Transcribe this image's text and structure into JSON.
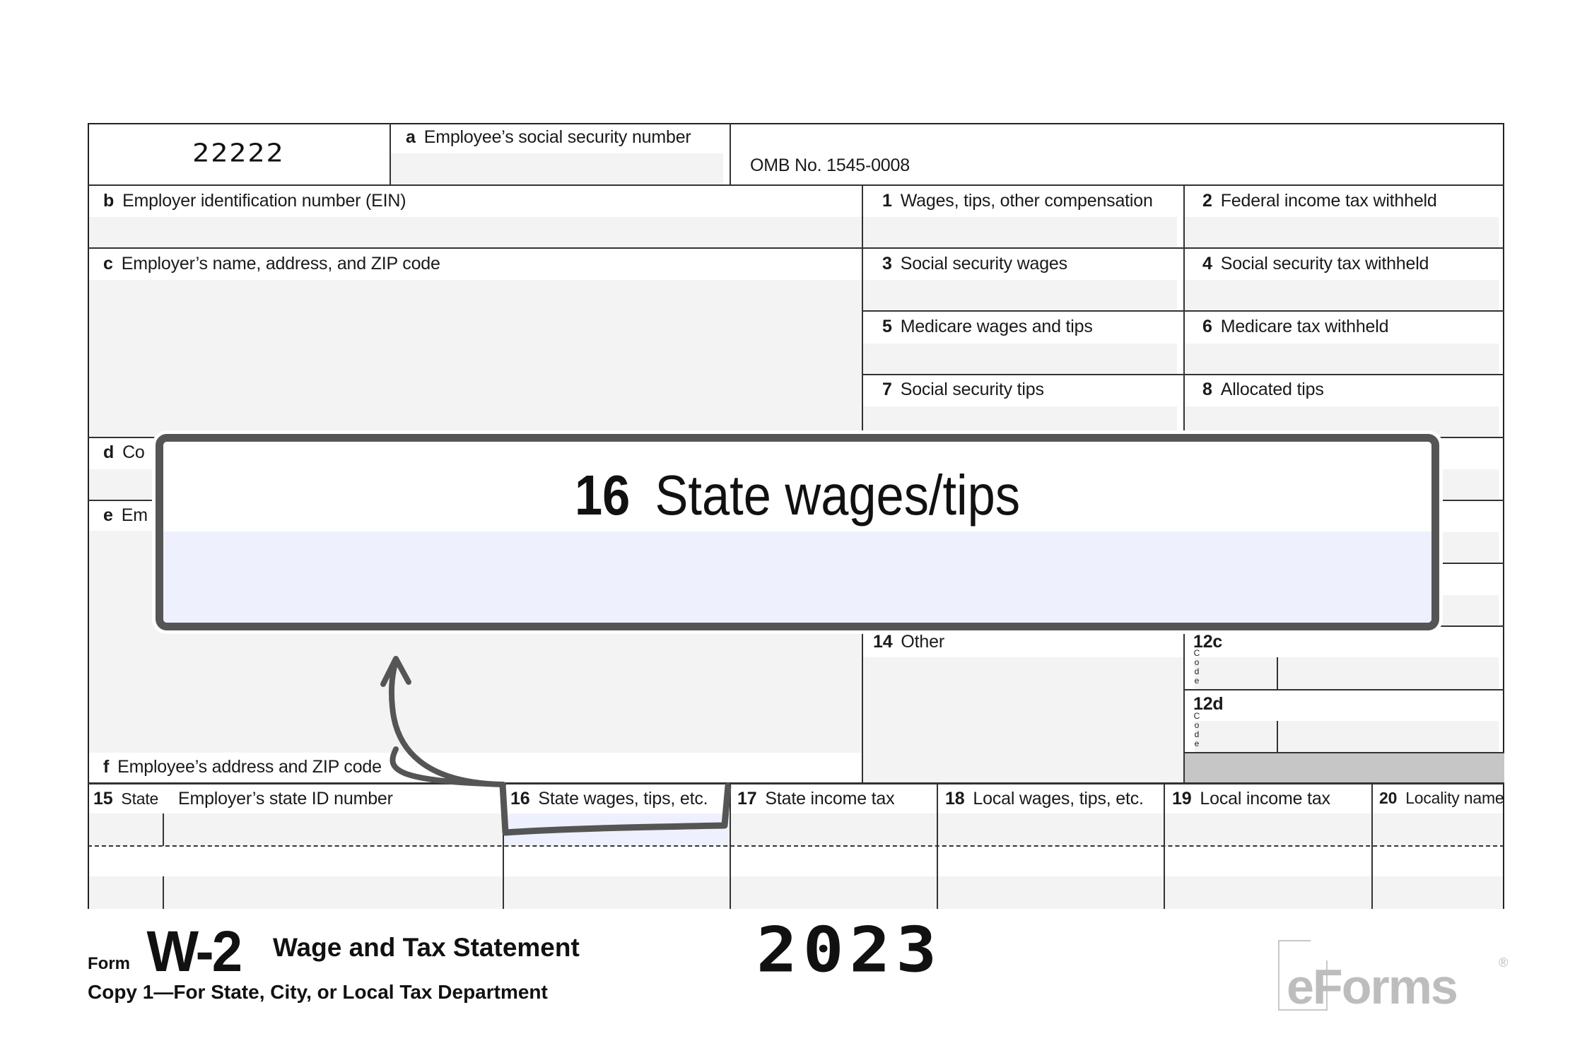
{
  "form": {
    "control_number": "22222",
    "omb": "OMB No. 1545-0008",
    "boxes": {
      "a": {
        "letter": "a",
        "label": "Employee’s social security number"
      },
      "b": {
        "letter": "b",
        "label": "Employer identification number (EIN)"
      },
      "c": {
        "letter": "c",
        "label": "Employer’s name, address, and ZIP code"
      },
      "d": {
        "letter": "d",
        "label": "Co"
      },
      "e": {
        "letter": "e",
        "label": "Em"
      },
      "f": {
        "letter": "f",
        "label": "Employee’s address and ZIP code"
      },
      "b1": {
        "num": "1",
        "label": "Wages, tips, other compensation"
      },
      "b2": {
        "num": "2",
        "label": "Federal income tax withheld"
      },
      "b3": {
        "num": "3",
        "label": "Social security wages"
      },
      "b4": {
        "num": "4",
        "label": "Social security tax withheld"
      },
      "b5": {
        "num": "5",
        "label": "Medicare wages and tips"
      },
      "b6": {
        "num": "6",
        "label": "Medicare tax withheld"
      },
      "b7": {
        "num": "7",
        "label": "Social security tips"
      },
      "b8": {
        "num": "8",
        "label": "Allocated tips"
      },
      "b14": {
        "num": "14",
        "label": "Other"
      },
      "b12c": {
        "num": "12c",
        "code": "Code"
      },
      "b12d": {
        "num": "12d",
        "code": "Code"
      },
      "b15": {
        "num": "15",
        "label": "State",
        "label2": "Employer’s state ID number"
      },
      "b16": {
        "num": "16",
        "label": "State wages, tips, etc."
      },
      "b17": {
        "num": "17",
        "label": "State income tax"
      },
      "b18": {
        "num": "18",
        "label": "Local wages, tips, etc."
      },
      "b19": {
        "num": "19",
        "label": "Local income tax"
      },
      "b20": {
        "num": "20",
        "label": "Locality name"
      }
    },
    "footer": {
      "form_word": "Form",
      "form_name": "W-2",
      "title": "Wage and Tax Statement",
      "year": "2023",
      "copy": "Copy 1—For State, City, or Local Tax Department"
    }
  },
  "callout": {
    "num": "16",
    "label": "State wages/tips",
    "border_color": "#555555",
    "fill_color": "#eef1fd"
  },
  "logo": {
    "text": "eForms",
    "mark": "®",
    "color": "#bdbdbd"
  }
}
